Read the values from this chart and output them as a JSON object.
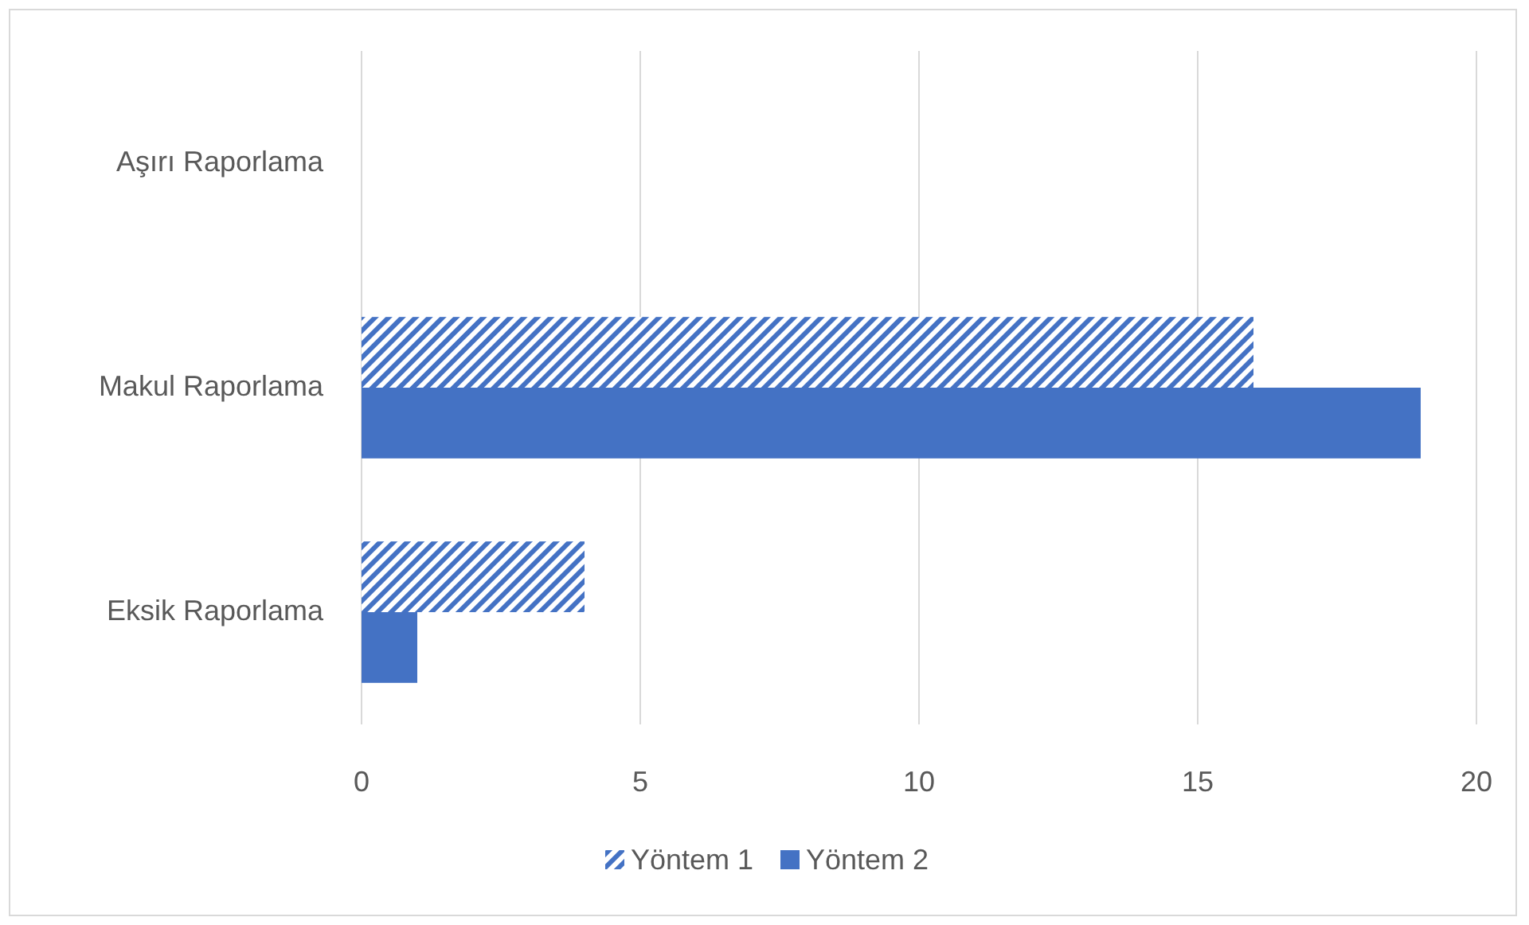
{
  "chart_data": {
    "type": "bar",
    "orientation": "horizontal",
    "categories": [
      "Aşırı Raporlama",
      "Makul Raporlama",
      "Eksik Raporlama"
    ],
    "series": [
      {
        "name": "Yöntem 1",
        "color": "#4472c4",
        "values": [
          0,
          16,
          4
        ]
      },
      {
        "name": "Yöntem 2",
        "color": "#4472c4",
        "values": [
          0,
          19,
          1
        ]
      }
    ],
    "xlim": [
      0,
      20
    ],
    "xticks": [
      0,
      5,
      10,
      15,
      20
    ],
    "grid": "x",
    "legend": "bottom"
  }
}
